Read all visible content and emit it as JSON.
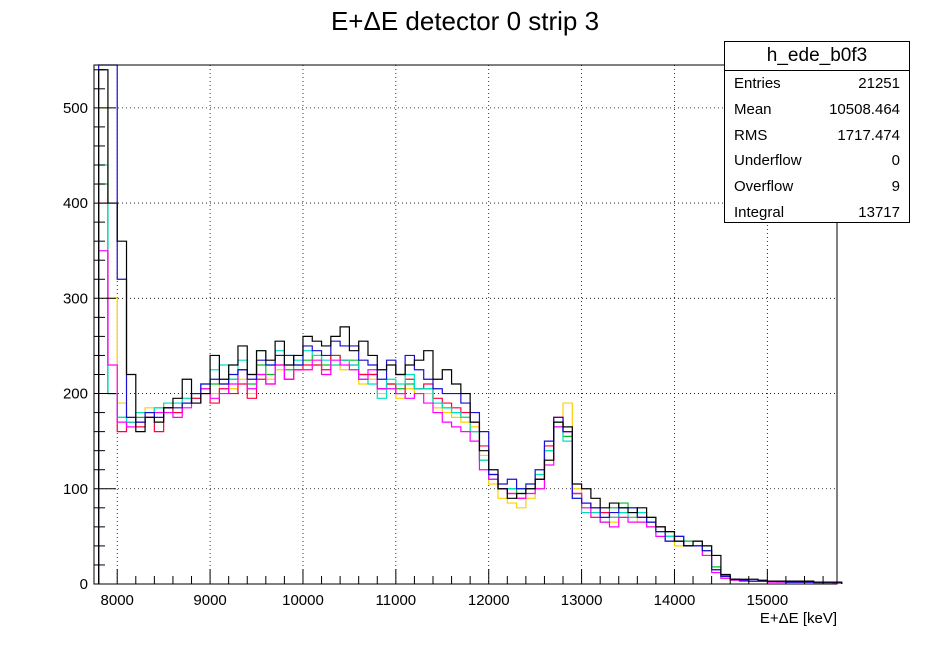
{
  "chart_data": {
    "type": "line",
    "title": "E+ΔE detector 0 strip 3",
    "xlabel": "E+ΔE [keV]",
    "ylabel": "",
    "xlim": [
      7750,
      15750
    ],
    "ylim": [
      0,
      545
    ],
    "x_ticks": [
      8000,
      9000,
      10000,
      11000,
      12000,
      13000,
      14000,
      15000
    ],
    "y_ticks": [
      0,
      100,
      200,
      300,
      400,
      500
    ],
    "grid": true,
    "legend": "none",
    "bin_edges_start": 7800,
    "bin_width": 100,
    "series": [
      {
        "color": "#000000",
        "values": [
          540,
          400,
          360,
          220,
          160,
          175,
          170,
          185,
          195,
          215,
          190,
          200,
          240,
          215,
          230,
          250,
          220,
          245,
          235,
          255,
          230,
          240,
          260,
          255,
          250,
          260,
          270,
          245,
          255,
          240,
          225,
          230,
          220,
          230,
          235,
          245,
          215,
          225,
          210,
          200,
          170,
          140,
          120,
          100,
          90,
          95,
          100,
          110,
          130,
          170,
          165,
          105,
          100,
          90,
          80,
          85,
          80,
          75,
          80,
          70,
          60,
          55,
          45,
          40,
          45,
          40,
          30,
          10,
          5,
          5,
          5,
          4,
          3,
          3,
          3,
          3,
          3,
          2,
          2,
          2
        ]
      },
      {
        "color": "#1a0fd1",
        "values": [
          545,
          545,
          320,
          175,
          170,
          180,
          175,
          185,
          185,
          190,
          200,
          210,
          215,
          210,
          220,
          225,
          215,
          235,
          230,
          240,
          240,
          230,
          250,
          245,
          240,
          255,
          250,
          250,
          235,
          230,
          215,
          235,
          220,
          240,
          225,
          215,
          205,
          200,
          200,
          190,
          180,
          160,
          115,
          105,
          110,
          100,
          105,
          120,
          150,
          175,
          160,
          90,
          85,
          80,
          70,
          75,
          80,
          80,
          70,
          65,
          55,
          45,
          50,
          40,
          40,
          35,
          15,
          8,
          5,
          4,
          3,
          3,
          3,
          3,
          2,
          2,
          2,
          2,
          2,
          2
        ]
      },
      {
        "color": "#ff00ff",
        "values": [
          350,
          230,
          170,
          165,
          170,
          175,
          180,
          180,
          175,
          185,
          190,
          205,
          195,
          200,
          210,
          225,
          205,
          220,
          210,
          230,
          215,
          225,
          225,
          235,
          220,
          235,
          230,
          225,
          215,
          225,
          205,
          205,
          200,
          195,
          200,
          190,
          180,
          170,
          165,
          160,
          150,
          120,
          110,
          100,
          95,
          90,
          95,
          100,
          125,
          165,
          160,
          95,
          80,
          70,
          65,
          60,
          70,
          65,
          65,
          60,
          50,
          45,
          45,
          40,
          40,
          30,
          12,
          6,
          4,
          3,
          3,
          3,
          2,
          2,
          2,
          2,
          2,
          2,
          2,
          1
        ]
      },
      {
        "color": "#00e0c0",
        "values": [
          440,
          200,
          175,
          170,
          180,
          180,
          185,
          190,
          190,
          195,
          200,
          210,
          225,
          230,
          215,
          235,
          220,
          245,
          230,
          245,
          240,
          235,
          245,
          240,
          235,
          230,
          235,
          230,
          215,
          210,
          195,
          215,
          210,
          220,
          205,
          205,
          190,
          185,
          180,
          175,
          160,
          130,
          110,
          100,
          100,
          100,
          100,
          115,
          140,
          165,
          150,
          90,
          75,
          75,
          65,
          70,
          75,
          70,
          75,
          65,
          55,
          50,
          45,
          40,
          45,
          35,
          15,
          8,
          4,
          3,
          3,
          3,
          3,
          2,
          2,
          2,
          2,
          1,
          1,
          1
        ]
      },
      {
        "color": "#ff0040",
        "values": [
          400,
          200,
          160,
          170,
          165,
          175,
          160,
          185,
          180,
          190,
          195,
          200,
          190,
          205,
          200,
          210,
          195,
          215,
          210,
          230,
          215,
          225,
          230,
          230,
          225,
          240,
          235,
          230,
          220,
          220,
          205,
          210,
          200,
          215,
          205,
          210,
          195,
          190,
          185,
          180,
          170,
          145,
          115,
          100,
          95,
          90,
          100,
          110,
          145,
          175,
          160,
          95,
          85,
          80,
          75,
          70,
          75,
          75,
          70,
          65,
          60,
          50,
          45,
          40,
          40,
          35,
          15,
          8,
          5,
          4,
          3,
          3,
          3,
          3,
          2,
          2,
          2,
          2,
          2,
          1
        ]
      },
      {
        "color": "#ffd000",
        "values": [
          500,
          300,
          190,
          175,
          180,
          185,
          180,
          190,
          190,
          195,
          200,
          205,
          200,
          210,
          205,
          215,
          200,
          220,
          215,
          225,
          215,
          225,
          225,
          230,
          220,
          230,
          225,
          225,
          210,
          215,
          200,
          210,
          195,
          205,
          200,
          200,
          185,
          180,
          175,
          170,
          165,
          135,
          105,
          90,
          85,
          80,
          90,
          100,
          130,
          175,
          190,
          100,
          80,
          70,
          65,
          65,
          70,
          70,
          65,
          60,
          55,
          45,
          40,
          40,
          40,
          30,
          12,
          6,
          4,
          3,
          3,
          3,
          3,
          2,
          2,
          2,
          2,
          2,
          1,
          1
        ]
      },
      {
        "color": "#00c020",
        "values": [
          420,
          200,
          175,
          170,
          175,
          180,
          185,
          185,
          180,
          190,
          195,
          205,
          210,
          210,
          215,
          225,
          210,
          230,
          220,
          240,
          225,
          230,
          235,
          240,
          230,
          240,
          235,
          235,
          220,
          220,
          205,
          210,
          205,
          210,
          205,
          205,
          190,
          185,
          180,
          175,
          160,
          130,
          110,
          100,
          100,
          95,
          100,
          110,
          140,
          170,
          155,
          95,
          85,
          80,
          75,
          80,
          85,
          80,
          75,
          70,
          60,
          55,
          50,
          45,
          45,
          40,
          18,
          9,
          5,
          4,
          3,
          3,
          3,
          3,
          2,
          2,
          2,
          2,
          2,
          1
        ]
      }
    ]
  },
  "stats": {
    "name": "h_ede_b0f3",
    "rows": [
      {
        "label": "Entries",
        "value": "21251"
      },
      {
        "label": "Mean",
        "value": "10508.464"
      },
      {
        "label": "RMS",
        "value": "1717.474"
      },
      {
        "label": "Underflow",
        "value": "0"
      },
      {
        "label": "Overflow",
        "value": "9"
      },
      {
        "label": "Integral",
        "value": "13717"
      }
    ]
  }
}
